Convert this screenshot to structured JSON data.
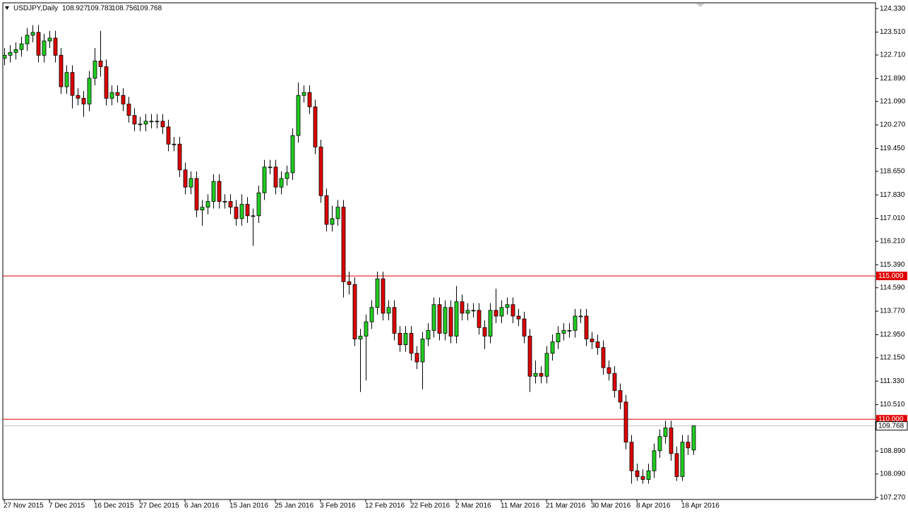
{
  "chart_data": {
    "type": "candlestick",
    "symbol": "USDJPY,Daily",
    "up_color": "#22cc22",
    "down_color": "#dd0000",
    "line_color": "#e00000",
    "ylim": [
      107.2,
      124.53
    ],
    "yticks": [
      {
        "value": 124.33,
        "label": "124.330"
      },
      {
        "value": 123.51,
        "label": "123.510"
      },
      {
        "value": 122.71,
        "label": "122.710"
      },
      {
        "value": 121.89,
        "label": "121.890"
      },
      {
        "value": 121.09,
        "label": "121.090"
      },
      {
        "value": 120.27,
        "label": "120.270"
      },
      {
        "value": 119.45,
        "label": "119.450"
      },
      {
        "value": 118.65,
        "label": "118.650"
      },
      {
        "value": 117.83,
        "label": "117.830"
      },
      {
        "value": 117.01,
        "label": "117.010"
      },
      {
        "value": 116.21,
        "label": "116.210"
      },
      {
        "value": 115.39,
        "label": "115.390"
      },
      {
        "value": 114.59,
        "label": "114.590"
      },
      {
        "value": 113.77,
        "label": "113.770"
      },
      {
        "value": 112.95,
        "label": "112.950"
      },
      {
        "value": 112.15,
        "label": "112.150"
      },
      {
        "value": 111.33,
        "label": "111.330"
      },
      {
        "value": 110.51,
        "label": "110.510"
      },
      {
        "value": 108.89,
        "label": "108.890"
      },
      {
        "value": 108.09,
        "label": "108.090"
      },
      {
        "value": 107.27,
        "label": "107.270"
      }
    ],
    "hlines": [
      {
        "value": 115,
        "label": "115.000"
      },
      {
        "value": 110,
        "label": "110.000"
      }
    ],
    "categories": [
      "27 Nov 2015",
      null,
      null,
      null,
      null,
      null,
      null,
      null,
      "7 Dec 2015",
      null,
      null,
      null,
      null,
      null,
      null,
      null,
      "16 Dec 2015",
      null,
      null,
      null,
      null,
      null,
      null,
      null,
      "27 Dec 2015",
      null,
      null,
      null,
      null,
      null,
      null,
      null,
      "6 Jan 2016",
      null,
      null,
      null,
      null,
      null,
      null,
      null,
      "15 Jan 2016",
      null,
      null,
      null,
      null,
      null,
      null,
      null,
      "25 Jan 2016",
      null,
      null,
      null,
      null,
      null,
      null,
      null,
      "3 Feb 2016",
      null,
      null,
      null,
      null,
      null,
      null,
      null,
      "12 Feb 2016",
      null,
      null,
      null,
      null,
      null,
      null,
      null,
      "22 Feb 2016",
      null,
      null,
      null,
      null,
      null,
      null,
      null,
      "2 Mar 2016",
      null,
      null,
      null,
      null,
      null,
      null,
      null,
      "11 Mar 2016",
      null,
      null,
      null,
      null,
      null,
      null,
      null,
      "21 Mar 2016",
      null,
      null,
      null,
      null,
      null,
      null,
      null,
      "30 Mar 2016",
      null,
      null,
      null,
      null,
      null,
      null,
      null,
      "8 Apr 2016",
      null,
      null,
      null,
      null,
      null,
      null,
      null,
      "18 Apr 2016",
      null,
      null
    ],
    "open": [
      122.6,
      122.7,
      122.8,
      122.9,
      123.1,
      123.4,
      123.5,
      122.7,
      123.2,
      123.3,
      122.7,
      121.6,
      122.1,
      121.3,
      121.2,
      121.0,
      121.9,
      122.5,
      122.3,
      121.2,
      121.4,
      121.3,
      121.0,
      120.6,
      120.3,
      120.3,
      120.4,
      120.4,
      120.4,
      120.2,
      119.6,
      119.6,
      118.7,
      118.1,
      118.4,
      117.3,
      117.4,
      117.6,
      118.3,
      117.6,
      117.6,
      117.4,
      117.0,
      117.5,
      117.1,
      117.1,
      117.9,
      118.8,
      118.8,
      118.1,
      118.4,
      118.6,
      119.9,
      121.3,
      121.4,
      120.9,
      119.5,
      117.8,
      116.8,
      117.0,
      117.4,
      114.8,
      114.7,
      112.8,
      112.9,
      113.4,
      113.9,
      114.9,
      113.7,
      113.9,
      113.0,
      112.6,
      113.0,
      112.3,
      112.0,
      112.8,
      113.1,
      114.0,
      113.0,
      113.9,
      112.9,
      114.1,
      113.7,
      113.8,
      113.8,
      113.2,
      112.9,
      113.8,
      113.6,
      113.9,
      114.0,
      113.6,
      113.5,
      112.9,
      111.5,
      111.6,
      111.5,
      112.3,
      112.7,
      113.0,
      113.1,
      113.1,
      113.6,
      113.6,
      112.8,
      112.7,
      112.5,
      111.8,
      111.6,
      111.0,
      110.6,
      109.2,
      108.2,
      108.0,
      107.9,
      108.2,
      108.9,
      109.4,
      109.7,
      108.8,
      108.0,
      109.2,
      108.927
    ],
    "high": [
      122.95,
      123.05,
      123.15,
      123.35,
      123.65,
      123.75,
      123.75,
      123.45,
      123.55,
      123.55,
      122.95,
      122.35,
      122.35,
      121.55,
      121.45,
      122.15,
      122.95,
      123.55,
      122.55,
      121.65,
      121.65,
      121.55,
      121.25,
      120.85,
      120.55,
      120.65,
      120.65,
      120.65,
      120.65,
      120.45,
      119.85,
      119.85,
      118.95,
      118.65,
      118.65,
      117.65,
      117.85,
      118.55,
      118.55,
      117.85,
      117.85,
      117.65,
      117.85,
      117.75,
      117.35,
      118.15,
      119.05,
      119.05,
      119.05,
      118.65,
      118.85,
      120.15,
      121.75,
      121.65,
      121.65,
      121.15,
      119.75,
      118.05,
      117.45,
      117.65,
      117.65,
      115.15,
      114.95,
      113.15,
      113.65,
      114.15,
      115.15,
      115.15,
      114.15,
      114.15,
      113.25,
      113.25,
      113.25,
      112.55,
      113.05,
      113.35,
      114.25,
      114.25,
      114.15,
      114.15,
      114.65,
      114.35,
      114.05,
      114.05,
      114.05,
      113.45,
      114.05,
      114.55,
      114.15,
      114.25,
      114.25,
      113.85,
      113.75,
      113.15,
      112.05,
      111.85,
      112.55,
      112.95,
      113.25,
      113.35,
      113.35,
      113.85,
      113.85,
      113.85,
      113.05,
      112.95,
      112.75,
      112.05,
      111.85,
      111.25,
      110.85,
      109.45,
      108.45,
      108.25,
      108.45,
      109.15,
      109.65,
      109.95,
      109.95,
      109.05,
      109.45,
      109.45,
      109.783
    ],
    "low": [
      122.35,
      122.45,
      122.55,
      122.65,
      122.85,
      123.15,
      122.45,
      122.45,
      122.95,
      122.45,
      121.35,
      121.35,
      120.85,
      120.95,
      120.55,
      120.75,
      121.65,
      121.95,
      120.95,
      120.95,
      121.05,
      120.75,
      120.35,
      120.05,
      120.05,
      120.05,
      120.15,
      120.15,
      119.95,
      119.35,
      119.35,
      118.45,
      117.85,
      117.85,
      117.05,
      116.75,
      117.15,
      117.35,
      117.35,
      117.35,
      117.15,
      116.75,
      116.75,
      116.85,
      116.05,
      116.85,
      117.65,
      118.55,
      117.85,
      117.85,
      118.15,
      118.35,
      119.65,
      121.05,
      120.65,
      119.25,
      117.55,
      116.55,
      116.55,
      116.75,
      114.25,
      114.35,
      112.55,
      110.95,
      111.35,
      113.15,
      113.65,
      113.45,
      113.45,
      112.75,
      112.35,
      112.35,
      112.05,
      111.75,
      111.05,
      112.55,
      112.85,
      112.75,
      112.75,
      112.65,
      112.65,
      113.45,
      113.45,
      113.55,
      112.95,
      112.45,
      112.65,
      113.35,
      113.35,
      113.65,
      113.35,
      113.25,
      112.65,
      110.95,
      111.25,
      111.25,
      111.25,
      112.05,
      112.45,
      112.75,
      112.85,
      112.85,
      113.35,
      112.55,
      112.45,
      112.25,
      111.55,
      111.35,
      110.75,
      110.35,
      108.95,
      107.75,
      107.85,
      107.75,
      107.75,
      107.95,
      108.65,
      109.15,
      108.55,
      107.85,
      107.85,
      108.75,
      108.756
    ],
    "close": [
      122.7,
      122.8,
      122.9,
      123.1,
      123.4,
      123.5,
      122.7,
      123.2,
      123.3,
      122.7,
      121.6,
      122.1,
      121.3,
      121.2,
      121.0,
      121.9,
      122.5,
      122.3,
      121.2,
      121.4,
      121.3,
      121.0,
      120.6,
      120.3,
      120.3,
      120.4,
      120.4,
      120.4,
      120.2,
      119.6,
      119.6,
      118.7,
      118.1,
      118.4,
      117.3,
      117.4,
      117.6,
      118.3,
      117.6,
      117.6,
      117.4,
      117.0,
      117.5,
      117.1,
      117.1,
      117.9,
      118.8,
      118.8,
      118.1,
      118.4,
      118.6,
      119.9,
      121.3,
      121.4,
      120.9,
      119.5,
      117.8,
      116.8,
      117.0,
      117.4,
      114.8,
      114.7,
      112.8,
      112.9,
      113.4,
      113.9,
      114.9,
      113.7,
      113.9,
      113.0,
      112.6,
      113.0,
      112.3,
      112.0,
      112.8,
      113.1,
      114.0,
      113.0,
      113.9,
      112.9,
      114.1,
      113.7,
      113.8,
      113.8,
      113.2,
      112.9,
      113.8,
      113.6,
      113.9,
      114.0,
      113.6,
      113.5,
      112.9,
      111.5,
      111.6,
      111.5,
      112.3,
      112.7,
      113.0,
      113.1,
      113.1,
      113.6,
      113.6,
      112.8,
      112.7,
      112.5,
      111.8,
      111.6,
      111.0,
      110.6,
      109.2,
      108.2,
      108.0,
      107.9,
      108.2,
      108.9,
      109.4,
      109.7,
      108.8,
      108.0,
      109.2,
      109.0,
      109.768
    ]
  }
}
